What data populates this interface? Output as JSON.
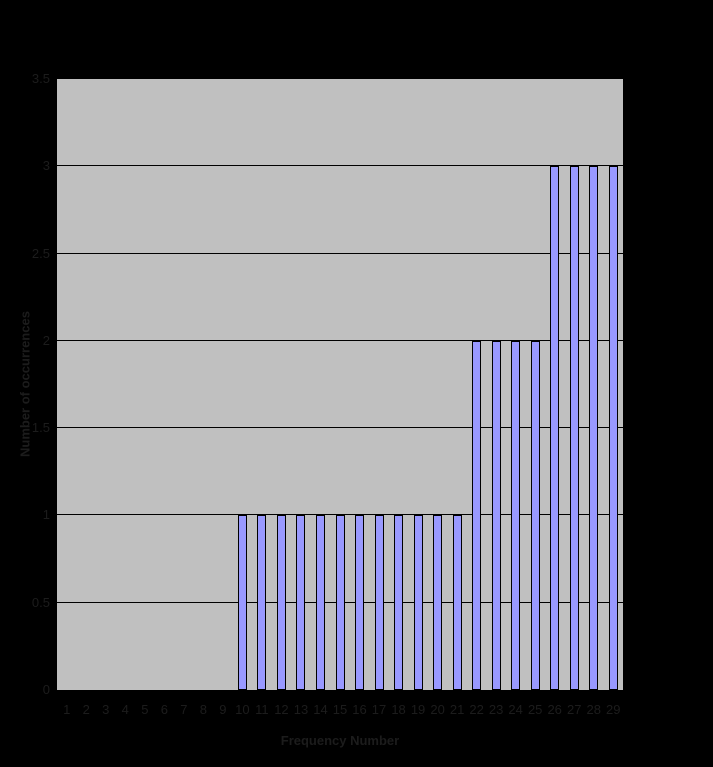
{
  "figure": {
    "background_color": "#000000",
    "text_color": "#1c1c1c"
  },
  "chart_data": {
    "type": "bar",
    "xlabel": "Frequency Number",
    "ylabel": "Number of occurrences",
    "categories": [
      "1",
      "2",
      "3",
      "4",
      "5",
      "6",
      "7",
      "8",
      "9",
      "10",
      "11",
      "12",
      "13",
      "14",
      "15",
      "16",
      "17",
      "18",
      "19",
      "20",
      "21",
      "22",
      "23",
      "24",
      "25",
      "26",
      "27",
      "28",
      "29"
    ],
    "values": [
      0,
      0,
      0,
      0,
      0,
      0,
      0,
      0,
      0,
      1,
      1,
      1,
      1,
      1,
      1,
      1,
      1,
      1,
      1,
      1,
      1,
      2,
      2,
      2,
      2,
      3,
      3,
      3,
      3
    ],
    "ylim": [
      0,
      3.5
    ],
    "ytick_step": 0.5,
    "ytick_labels": [
      "0",
      "0.5",
      "1",
      "1.5",
      "2",
      "2.5",
      "3",
      "3.5"
    ],
    "grid": true,
    "legend": false,
    "plot_bg_color": "#c0c0c0",
    "bar_color": "#9999ff",
    "bar_border_color": "#000000",
    "gridline_color": "#000000"
  }
}
